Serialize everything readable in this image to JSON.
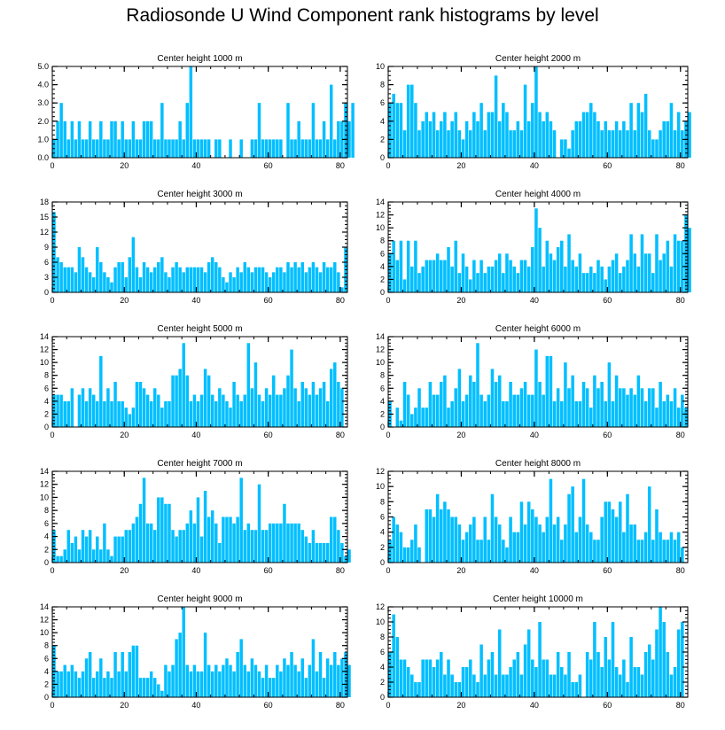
{
  "title": "Radiosonde U Wind Component rank histograms by level",
  "bar_color": "#00BFFF",
  "chart_data": [
    {
      "type": "bar",
      "title": "Center height 1000 m",
      "xlim": [
        0,
        82
      ],
      "xticks": [
        0,
        20,
        40,
        60,
        80
      ],
      "ylim": [
        0,
        5
      ],
      "yticks": [
        0,
        1,
        2,
        3,
        4,
        5
      ],
      "ytick_labels": [
        "0.0",
        "1.0",
        "2.0",
        "3.0",
        "4.0",
        "5.0"
      ],
      "values": [
        1,
        2,
        3,
        2,
        1,
        2,
        1,
        2,
        1,
        1,
        2,
        1,
        1,
        2,
        1,
        1,
        2,
        2,
        1,
        2,
        1,
        1,
        2,
        1,
        1,
        2,
        2,
        2,
        1,
        1,
        3,
        1,
        1,
        1,
        1,
        2,
        1,
        3,
        5,
        1,
        1,
        1,
        1,
        1,
        0,
        1,
        1,
        0,
        0,
        1,
        0,
        0,
        1,
        0,
        0,
        1,
        1,
        3,
        1,
        1,
        1,
        1,
        1,
        1,
        0,
        3,
        1,
        1,
        2,
        1,
        1,
        1,
        3,
        1,
        1,
        2,
        1,
        4,
        1,
        2,
        2,
        3,
        2,
        3
      ]
    },
    {
      "type": "bar",
      "title": "Center height 2000 m",
      "xlim": [
        0,
        82
      ],
      "xticks": [
        0,
        20,
        40,
        60,
        80
      ],
      "ylim": [
        0,
        10
      ],
      "yticks": [
        0,
        2,
        4,
        6,
        8,
        10
      ],
      "ytick_labels": [
        "0",
        "2",
        "4",
        "6",
        "8",
        "10"
      ],
      "values": [
        6,
        7,
        6,
        6,
        3,
        8,
        8,
        6,
        3,
        4,
        5,
        4,
        5,
        3,
        4,
        5,
        3,
        4,
        5,
        3,
        2,
        4,
        3,
        5,
        4,
        6,
        3,
        5,
        5,
        9,
        4,
        6,
        5,
        3,
        3,
        4,
        3,
        8,
        4,
        6,
        10,
        5,
        4,
        5,
        4,
        3,
        0,
        2,
        2,
        1,
        3,
        4,
        4,
        5,
        5,
        6,
        5,
        4,
        3,
        4,
        3,
        3,
        4,
        3,
        4,
        3,
        6,
        3,
        6,
        5,
        7,
        3,
        2,
        2,
        3,
        4,
        4,
        6,
        3,
        5,
        3,
        4,
        5
      ]
    },
    {
      "type": "bar",
      "title": "Center height 3000 m",
      "xlim": [
        0,
        82
      ],
      "xticks": [
        0,
        20,
        40,
        60,
        80
      ],
      "ylim": [
        0,
        18
      ],
      "yticks": [
        0,
        3,
        6,
        9,
        12,
        15,
        18
      ],
      "ytick_labels": [
        "0",
        "3",
        "6",
        "9",
        "12",
        "15",
        "18"
      ],
      "values": [
        16,
        7,
        6,
        5,
        5,
        5,
        4,
        9,
        7,
        5,
        4,
        3,
        9,
        6,
        4,
        3,
        2,
        5,
        6,
        6,
        3,
        7,
        11,
        5,
        3,
        6,
        5,
        4,
        5,
        6,
        7,
        4,
        3,
        5,
        6,
        5,
        4,
        5,
        5,
        5,
        5,
        5,
        4,
        6,
        7,
        6,
        5,
        3,
        2,
        4,
        3,
        5,
        4,
        6,
        5,
        4,
        5,
        5,
        5,
        4,
        3,
        4,
        5,
        5,
        4,
        6,
        5,
        6,
        5,
        6,
        4,
        5,
        6,
        5,
        4,
        6,
        5,
        5,
        6,
        4,
        1,
        9
      ]
    },
    {
      "type": "bar",
      "title": "Center height 4000 m",
      "xlim": [
        0,
        82
      ],
      "xticks": [
        0,
        20,
        40,
        60,
        80
      ],
      "ylim": [
        0,
        14
      ],
      "yticks": [
        0,
        2,
        4,
        6,
        8,
        10,
        12,
        14
      ],
      "ytick_labels": [
        "0",
        "2",
        "4",
        "6",
        "8",
        "10",
        "12",
        "14"
      ],
      "values": [
        6,
        8,
        5,
        8,
        2,
        8,
        4,
        8,
        3,
        4,
        5,
        5,
        5,
        6,
        5,
        5,
        7,
        4,
        8,
        3,
        6,
        4,
        2,
        5,
        3,
        5,
        3,
        4,
        4,
        5,
        6,
        3,
        6,
        5,
        4,
        3,
        5,
        5,
        4,
        7,
        13,
        10,
        4,
        8,
        6,
        5,
        7,
        8,
        4,
        9,
        5,
        4,
        6,
        3,
        3,
        4,
        3,
        5,
        4,
        2,
        4,
        5,
        6,
        3,
        4,
        5,
        9,
        6,
        4,
        9,
        6,
        6,
        3,
        9,
        5,
        6,
        8,
        4,
        9,
        8,
        8,
        12,
        10
      ]
    },
    {
      "type": "bar",
      "title": "Center height 5000 m",
      "xlim": [
        0,
        82
      ],
      "xticks": [
        0,
        20,
        40,
        60,
        80
      ],
      "ylim": [
        0,
        14
      ],
      "yticks": [
        0,
        2,
        4,
        6,
        8,
        10,
        12,
        14
      ],
      "ytick_labels": [
        "0",
        "2",
        "4",
        "6",
        "8",
        "10",
        "12",
        "14"
      ],
      "values": [
        5,
        5,
        5,
        4,
        4,
        6,
        0,
        5,
        6,
        4,
        6,
        5,
        4,
        11,
        4,
        6,
        4,
        7,
        4,
        4,
        3,
        2,
        3,
        7,
        7,
        6,
        5,
        4,
        6,
        5,
        3,
        4,
        4,
        8,
        8,
        9,
        13,
        8,
        4,
        5,
        4,
        5,
        9,
        8,
        5,
        4,
        6,
        5,
        4,
        3,
        7,
        5,
        4,
        5,
        13,
        6,
        10,
        5,
        4,
        6,
        5,
        8,
        5,
        5,
        6,
        8,
        12,
        6,
        4,
        7,
        6,
        5,
        7,
        5,
        6,
        7,
        4,
        9,
        10,
        7,
        6
      ]
    },
    {
      "type": "bar",
      "title": "Center height 6000 m",
      "xlim": [
        0,
        82
      ],
      "xticks": [
        0,
        20,
        40,
        60,
        80
      ],
      "ylim": [
        0,
        14
      ],
      "yticks": [
        0,
        2,
        4,
        6,
        8,
        10,
        12,
        14
      ],
      "ytick_labels": [
        "0",
        "2",
        "4",
        "6",
        "8",
        "10",
        "12",
        "14"
      ],
      "values": [
        4,
        0,
        3,
        1,
        7,
        5,
        2,
        3,
        6,
        3,
        3,
        7,
        5,
        5,
        7,
        8,
        3,
        4,
        6,
        9,
        4,
        5,
        8,
        7,
        13,
        5,
        4,
        5,
        9,
        7,
        8,
        4,
        4,
        7,
        5,
        5,
        6,
        7,
        5,
        5,
        12,
        7,
        5,
        11,
        11,
        4,
        6,
        4,
        10,
        6,
        8,
        4,
        4,
        7,
        6,
        3,
        8,
        6,
        7,
        4,
        10,
        4,
        8,
        6,
        6,
        5,
        6,
        5,
        8,
        6,
        4,
        6,
        6,
        3,
        7,
        4,
        5,
        4,
        6,
        3,
        5,
        3
      ]
    },
    {
      "type": "bar",
      "title": "Center height 7000 m",
      "xlim": [
        0,
        82
      ],
      "xticks": [
        0,
        20,
        40,
        60,
        80
      ],
      "ylim": [
        0,
        14
      ],
      "yticks": [
        0,
        2,
        4,
        6,
        8,
        10,
        12,
        14
      ],
      "ytick_labels": [
        "0",
        "2",
        "4",
        "6",
        "8",
        "10",
        "12",
        "14"
      ],
      "values": [
        5,
        1,
        1,
        2,
        5,
        3,
        4,
        2,
        5,
        4,
        5,
        2,
        4,
        2,
        6,
        2,
        1,
        4,
        4,
        4,
        5,
        5,
        6,
        7,
        9,
        13,
        6,
        6,
        5,
        10,
        10,
        9,
        9,
        5,
        4,
        5,
        5,
        6,
        8,
        6,
        10,
        4,
        11,
        7,
        8,
        6,
        3,
        7,
        7,
        7,
        6,
        7,
        13,
        5,
        6,
        5,
        5,
        12,
        5,
        5,
        6,
        6,
        6,
        6,
        9,
        6,
        6,
        6,
        6,
        5,
        4,
        3,
        5,
        3,
        3,
        3,
        3,
        7,
        7,
        5,
        3,
        1,
        2
      ]
    },
    {
      "type": "bar",
      "title": "Center height 8000 m",
      "xlim": [
        0,
        82
      ],
      "xticks": [
        0,
        20,
        40,
        60,
        80
      ],
      "ylim": [
        0,
        12
      ],
      "yticks": [
        0,
        2,
        4,
        6,
        8,
        10,
        12
      ],
      "ytick_labels": [
        "0",
        "2",
        "4",
        "6",
        "8",
        "10",
        "12"
      ],
      "values": [
        3,
        6,
        5,
        4,
        2,
        2,
        3,
        5,
        2,
        0,
        7,
        7,
        6,
        9,
        7,
        8,
        7,
        6,
        6,
        5,
        3,
        4,
        5,
        6,
        3,
        3,
        6,
        3,
        9,
        6,
        5,
        3,
        2,
        6,
        4,
        4,
        8,
        5,
        8,
        7,
        6,
        5,
        4,
        6,
        11,
        5,
        6,
        3,
        5,
        9,
        10,
        4,
        6,
        11,
        5,
        4,
        3,
        3,
        6,
        8,
        8,
        7,
        6,
        8,
        4,
        9,
        5,
        5,
        3,
        3,
        4,
        10,
        3,
        7,
        4,
        3,
        3,
        4,
        3,
        4,
        2
      ]
    },
    {
      "type": "bar",
      "title": "Center height 9000 m",
      "xlim": [
        0,
        82
      ],
      "xticks": [
        0,
        20,
        40,
        60,
        80
      ],
      "ylim": [
        0,
        14
      ],
      "yticks": [
        0,
        2,
        4,
        6,
        8,
        10,
        12,
        14
      ],
      "ytick_labels": [
        "0",
        "2",
        "4",
        "6",
        "8",
        "10",
        "12",
        "14"
      ],
      "values": [
        8,
        4,
        4,
        5,
        4,
        5,
        4,
        3,
        4,
        6,
        7,
        3,
        4,
        6,
        3,
        4,
        3,
        7,
        4,
        7,
        4,
        7,
        8,
        8,
        3,
        3,
        3,
        4,
        3,
        2,
        1,
        5,
        4,
        5,
        9,
        10,
        14,
        5,
        4,
        5,
        4,
        4,
        10,
        5,
        4,
        5,
        4,
        5,
        6,
        5,
        4,
        7,
        9,
        5,
        4,
        6,
        5,
        4,
        3,
        5,
        3,
        3,
        5,
        4,
        6,
        5,
        7,
        5,
        4,
        6,
        3,
        5,
        9,
        4,
        7,
        3,
        6,
        5,
        7,
        5,
        6,
        7,
        5
      ]
    },
    {
      "type": "bar",
      "title": "Center height 10000 m",
      "xlim": [
        0,
        82
      ],
      "xticks": [
        0,
        20,
        40,
        60,
        80
      ],
      "ylim": [
        0,
        12
      ],
      "yticks": [
        0,
        2,
        4,
        6,
        8,
        10,
        12
      ],
      "ytick_labels": [
        "0",
        "2",
        "4",
        "6",
        "8",
        "10",
        "12"
      ],
      "values": [
        6,
        11,
        8,
        5,
        5,
        4,
        3,
        2,
        2,
        5,
        5,
        5,
        4,
        5,
        6,
        3,
        5,
        3,
        2,
        2,
        4,
        4,
        5,
        3,
        2,
        7,
        3,
        5,
        6,
        3,
        9,
        3,
        3,
        4,
        5,
        6,
        3,
        7,
        9,
        5,
        4,
        10,
        5,
        5,
        3,
        3,
        6,
        4,
        3,
        6,
        2,
        2,
        3,
        0,
        6,
        5,
        10,
        6,
        4,
        8,
        5,
        10,
        4,
        3,
        5,
        2,
        8,
        4,
        4,
        3,
        6,
        7,
        5,
        9,
        12,
        10,
        6,
        3,
        4,
        9,
        10
      ]
    }
  ]
}
